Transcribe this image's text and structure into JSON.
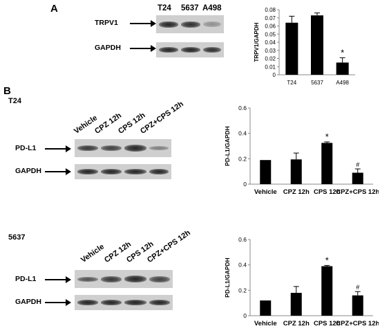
{
  "panel_a": {
    "letter": "A",
    "lanes": [
      "T24",
      "5637",
      "A498"
    ],
    "rows": [
      "TRPV1",
      "GAPDH"
    ],
    "band_intensity": {
      "TRPV1": [
        0.95,
        0.9,
        0.35
      ],
      "GAPDH": [
        0.95,
        0.95,
        0.9
      ]
    }
  },
  "panel_b": {
    "letter": "B",
    "t24": {
      "title": "T24",
      "lanes": [
        "Vehicle",
        "CPZ 12h",
        "CPS 12h",
        "CPZ+CPS 12h"
      ],
      "rows": [
        "PD-L1",
        "GAPDH"
      ],
      "band_intensity": {
        "PD-L1": [
          0.85,
          0.8,
          0.95,
          0.45
        ],
        "GAPDH": [
          0.95,
          0.95,
          0.95,
          0.95
        ]
      }
    },
    "c5637": {
      "title": "5637",
      "lanes": [
        "Vehicle",
        "CPZ 12h",
        "CPS 12h",
        "CPZ+CPS 12h"
      ],
      "rows": [
        "PD-L1",
        "GAPDH"
      ],
      "band_intensity": {
        "PD-L1": [
          0.7,
          0.85,
          0.95,
          0.8
        ],
        "GAPDH": [
          0.95,
          0.95,
          0.95,
          0.95
        ]
      }
    }
  },
  "chart_data": [
    {
      "type": "bar",
      "categories": [
        "T24",
        "5637",
        "A498"
      ],
      "values": [
        0.064,
        0.073,
        0.015
      ],
      "errors": [
        0.008,
        0.003,
        0.006
      ],
      "marks": [
        "",
        "",
        "*"
      ],
      "ylabel": "TRPV1/GAPDH",
      "ylim": [
        0,
        0.08
      ],
      "yticks": [
        "0",
        "0.01",
        "0.02",
        "0.03",
        "0.04",
        "0.05",
        "0.06",
        "0.07",
        "0.08"
      ],
      "ytick_values": [
        0,
        0.01,
        0.02,
        0.03,
        0.04,
        0.05,
        0.06,
        0.07,
        0.08
      ]
    },
    {
      "type": "bar",
      "categories": [
        "Vehicle",
        "CPZ 12h",
        "CPS 12h",
        "CPZ+CPS 12h"
      ],
      "values": [
        0.19,
        0.195,
        0.325,
        0.09
      ],
      "errors": [
        0.0,
        0.05,
        0.008,
        0.03
      ],
      "marks": [
        "",
        "",
        "*",
        "#"
      ],
      "ylabel": "PD-L1/GAPDH",
      "ylim": [
        0,
        0.6
      ],
      "yticks": [
        "0",
        "0.2",
        "0.4",
        "0.6"
      ],
      "ytick_values": [
        0,
        0.2,
        0.4,
        0.6
      ]
    },
    {
      "type": "bar",
      "categories": [
        "Vehicle",
        "CPZ 12h",
        "CPS 12h",
        "CPZ+CPS 12h"
      ],
      "values": [
        0.12,
        0.18,
        0.39,
        0.16
      ],
      "errors": [
        0.0,
        0.05,
        0.006,
        0.03
      ],
      "marks": [
        "",
        "",
        "*",
        "#"
      ],
      "ylabel": "PD-L1/GAPDH",
      "ylim": [
        0,
        0.6
      ],
      "yticks": [
        "0",
        "0.2",
        "0.4",
        "0.6"
      ],
      "ytick_values": [
        0,
        0.2,
        0.4,
        0.6
      ]
    }
  ]
}
